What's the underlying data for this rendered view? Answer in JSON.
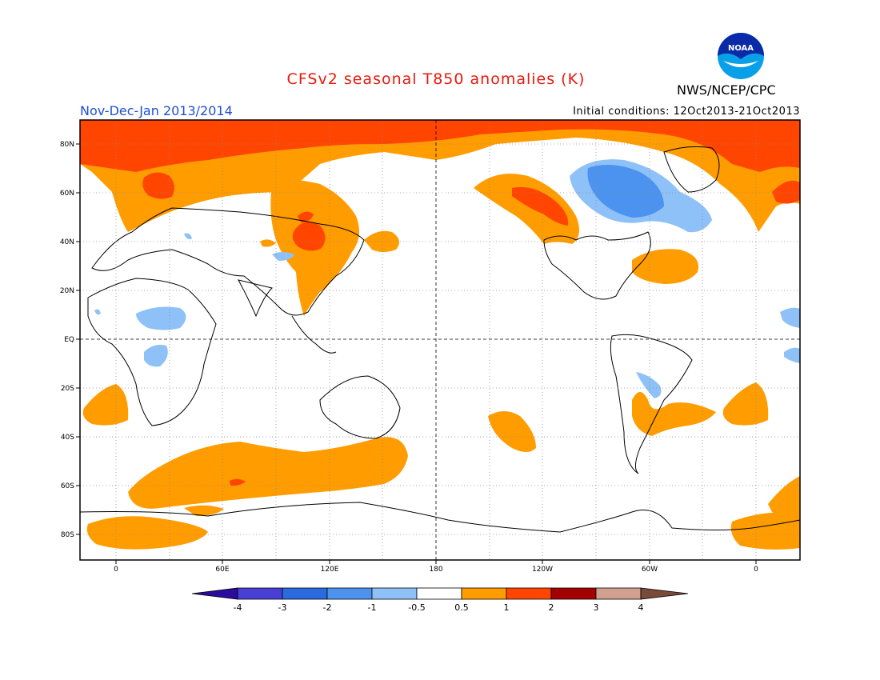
{
  "header": {
    "title": "CFSv2 seasonal T850 anomalies (K)",
    "org": "NWS/NCEP/CPC",
    "season": "Nov-Dec-Jan 2013/2014",
    "initial_conditions": "Initial conditions: 12Oct2013-21Oct2013",
    "logo_text": "NOAA"
  },
  "map": {
    "lat_labels": [
      "80N",
      "60N",
      "40N",
      "20N",
      "EQ",
      "20S",
      "40S",
      "60S",
      "80S"
    ],
    "lon_labels": [
      "0",
      "60E",
      "120E",
      "180",
      "120W",
      "60W",
      "0"
    ],
    "projection": "cylindrical equidistant, centered 180"
  },
  "colorbar": {
    "ticks": [
      "-4",
      "-3",
      "-2",
      "-1",
      "-0.5",
      "0.5",
      "1",
      "2",
      "3",
      "4"
    ],
    "colors": [
      "#2b0c9c",
      "#4a3fd4",
      "#2a6be0",
      "#4c93f0",
      "#8ec1f7",
      "#ffffff",
      "#ff9c00",
      "#ff4500",
      "#a50000",
      "#d1a08f",
      "#7a4a3a"
    ]
  }
}
